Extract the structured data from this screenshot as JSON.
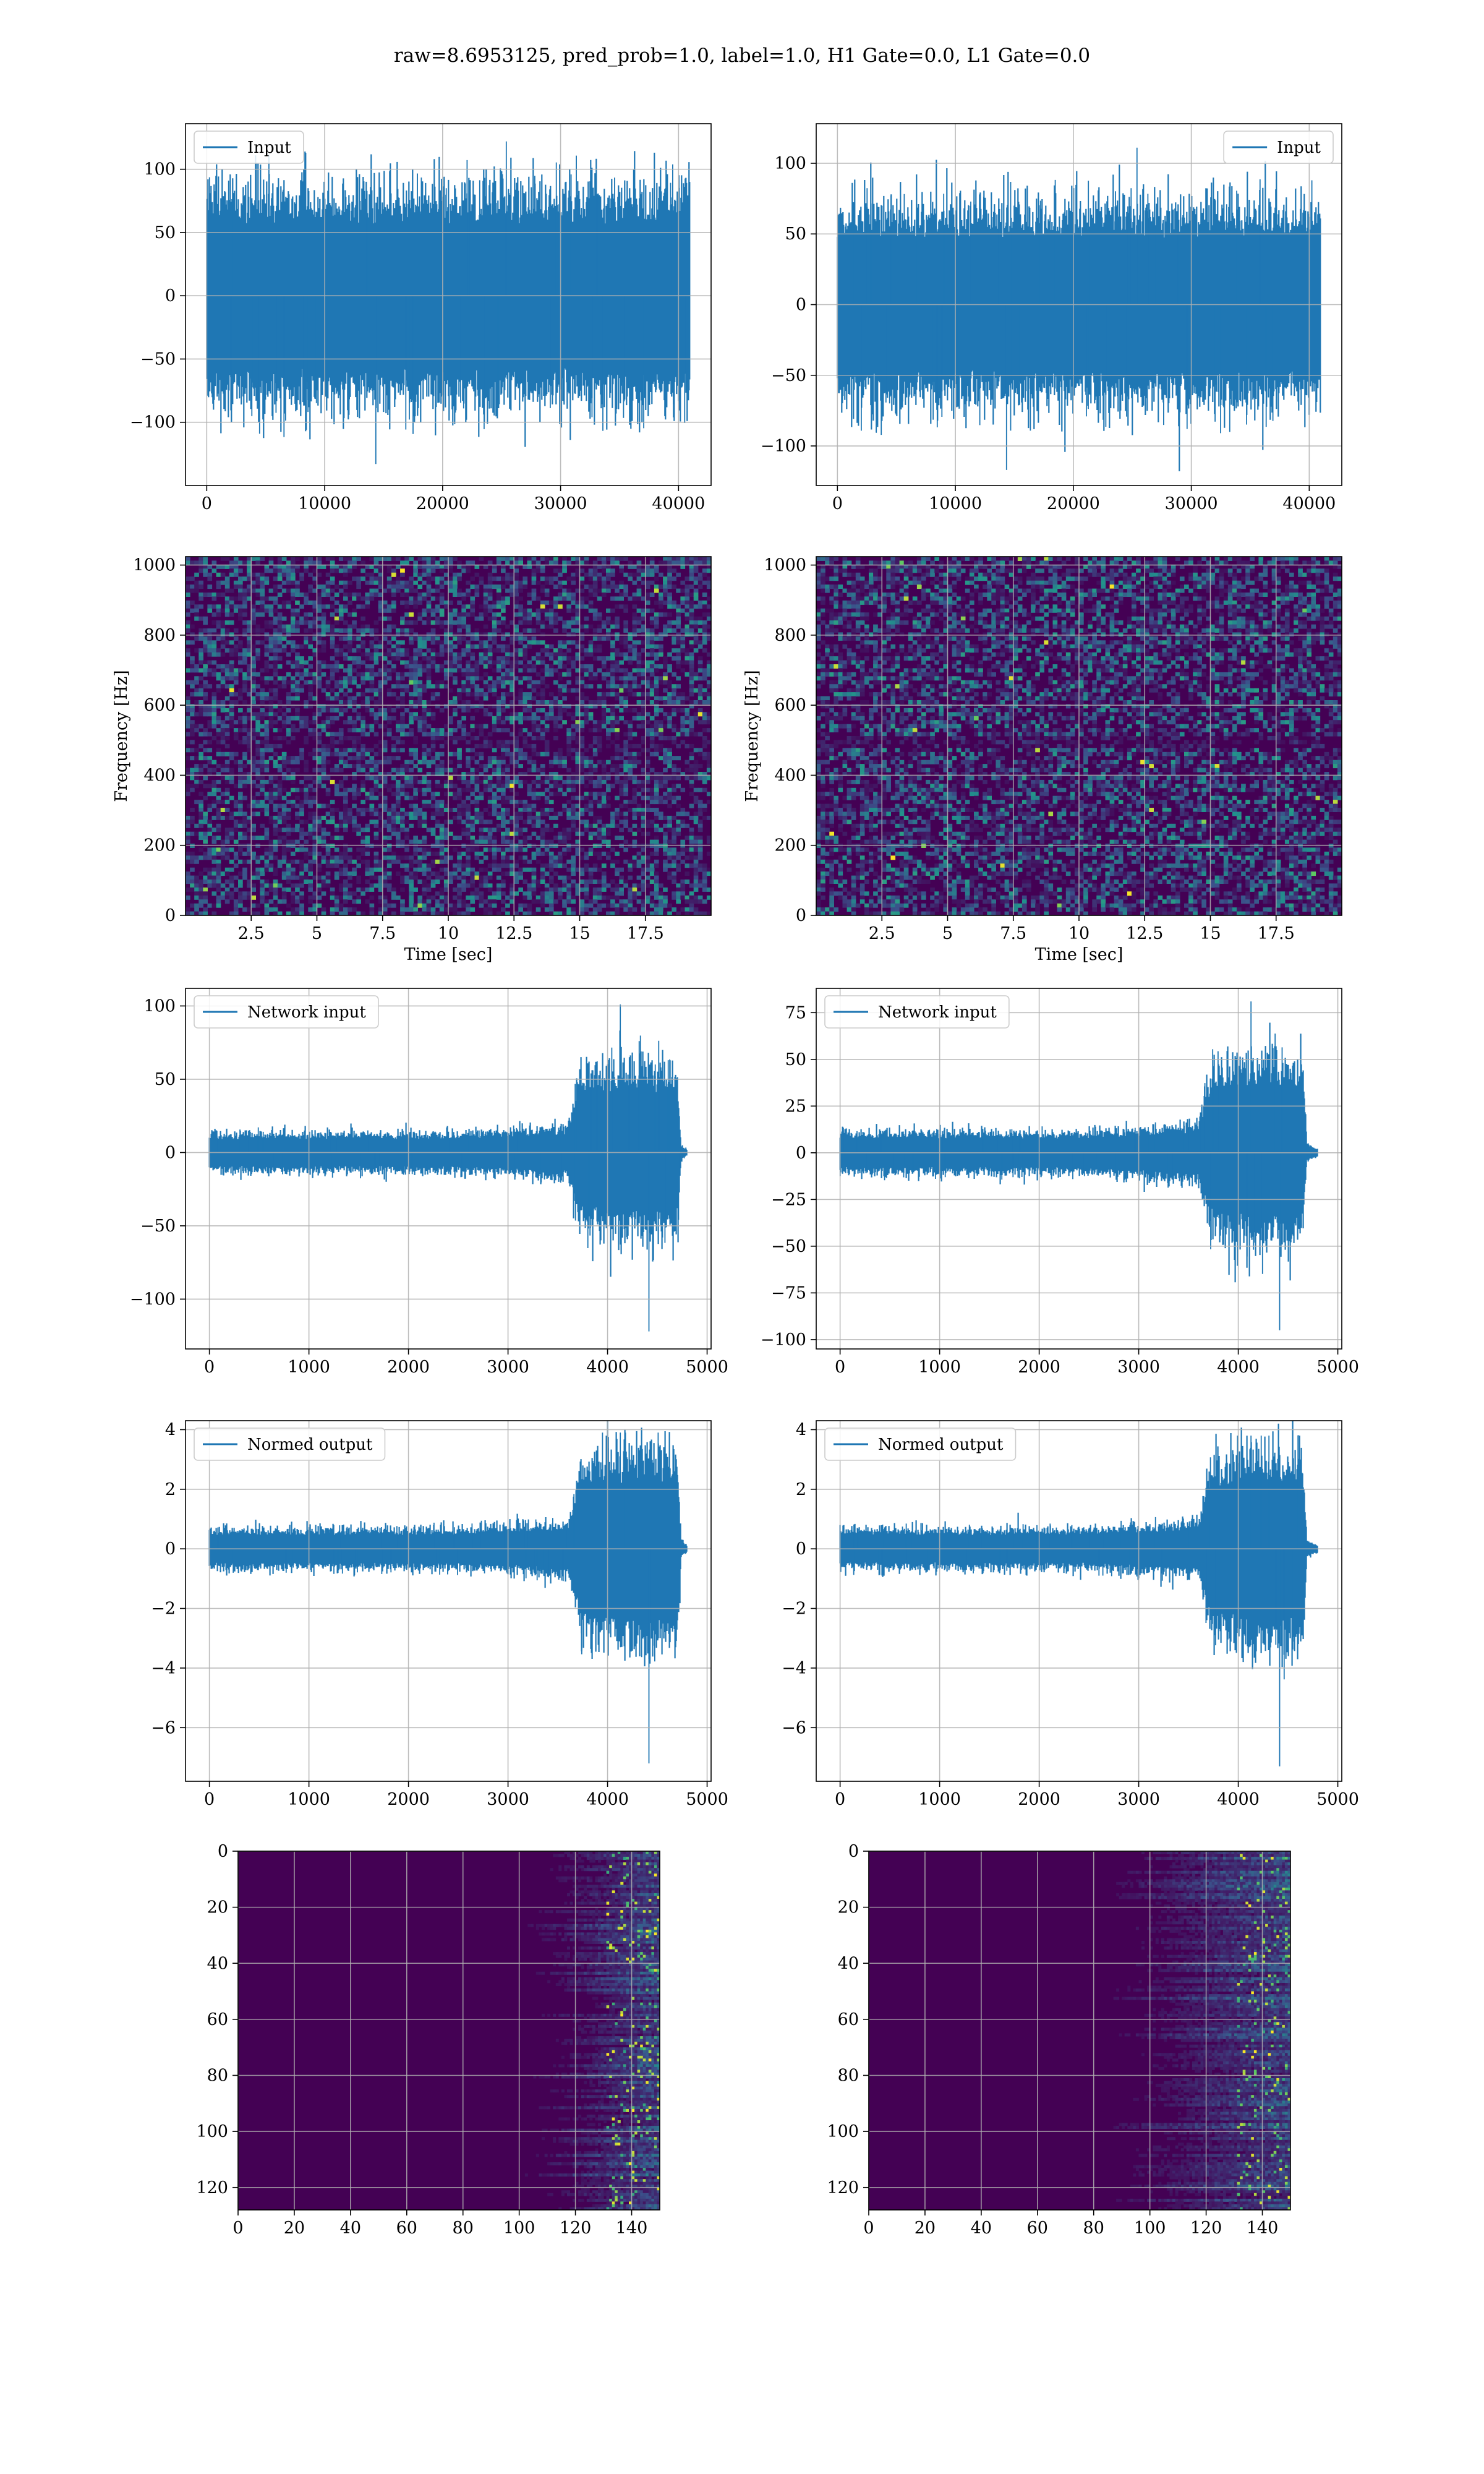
{
  "figure": {
    "suptitle": "raw=8.6953125, pred_prob=1.0, label=1.0, H1 Gate=0.0, L1 Gate=0.0"
  },
  "colors": {
    "series": "#1f77b4",
    "grid": "#b0b0b0",
    "viridis_dark": "#440154",
    "viridis_mid": "#21918c",
    "viridis_light": "#fde725"
  },
  "chart_data": [
    {
      "id": "h1-input",
      "type": "line",
      "legend": "Input",
      "legend_loc": "upper-left",
      "xlim": [
        -1800,
        42760
      ],
      "ylim": [
        -150,
        136
      ],
      "xticks": [
        0,
        10000,
        20000,
        30000,
        40000
      ],
      "yticks": [
        -100,
        -50,
        0,
        50,
        100
      ],
      "x_range": [
        0,
        40960
      ],
      "envelope": [
        {
          "x": 0,
          "lo": -75,
          "hi": 75
        },
        {
          "x": 20000,
          "lo": -75,
          "hi": 75
        },
        {
          "x": 40960,
          "lo": -75,
          "hi": 75
        }
      ],
      "peaks": [
        -133,
        122
      ],
      "grid": true
    },
    {
      "id": "l1-input",
      "type": "line",
      "legend": "Input",
      "legend_loc": "upper-right",
      "xlim": [
        -1800,
        42760
      ],
      "ylim": [
        -128,
        128
      ],
      "xticks": [
        0,
        10000,
        20000,
        30000,
        40000
      ],
      "yticks": [
        -100,
        -50,
        0,
        50,
        100
      ],
      "x_range": [
        0,
        40960
      ],
      "envelope": [
        {
          "x": 0,
          "lo": -62,
          "hi": 62
        },
        {
          "x": 20000,
          "lo": -62,
          "hi": 62
        },
        {
          "x": 40960,
          "lo": -62,
          "hi": 62
        }
      ],
      "peaks": [
        -117,
        111
      ],
      "grid": true
    },
    {
      "id": "h1-spectrogram",
      "type": "heatmap",
      "xlabel": "Time [sec]",
      "ylabel": "Frequency [Hz]",
      "xlim": [
        0,
        20
      ],
      "ylim": [
        0,
        1024
      ],
      "xticks": [
        2.5,
        5.0,
        7.5,
        10.0,
        12.5,
        15.0,
        17.5
      ],
      "yticks": [
        0,
        200,
        400,
        600,
        800,
        1000
      ],
      "colormap": "viridis",
      "grid": true
    },
    {
      "id": "l1-spectrogram",
      "type": "heatmap",
      "xlabel": "Time [sec]",
      "ylabel": "Frequency [Hz]",
      "xlim": [
        0,
        20
      ],
      "ylim": [
        0,
        1024
      ],
      "xticks": [
        2.5,
        5.0,
        7.5,
        10.0,
        12.5,
        15.0,
        17.5
      ],
      "yticks": [
        0,
        200,
        400,
        600,
        800,
        1000
      ],
      "colormap": "viridis",
      "grid": true
    },
    {
      "id": "h1-network-input",
      "type": "line",
      "legend": "Network input",
      "legend_loc": "upper-left",
      "xlim": [
        -240,
        5040
      ],
      "ylim": [
        -134,
        112
      ],
      "xticks": [
        0,
        1000,
        2000,
        3000,
        4000,
        5000
      ],
      "yticks": [
        -100,
        -50,
        0,
        50,
        100
      ],
      "x_range": [
        0,
        4800
      ],
      "envelope": [
        {
          "x": 0,
          "lo": -12,
          "hi": 12
        },
        {
          "x": 2500,
          "lo": -12,
          "hi": 12
        },
        {
          "x": 3600,
          "lo": -16,
          "hi": 16
        },
        {
          "x": 3740,
          "lo": -45,
          "hi": 48
        },
        {
          "x": 4300,
          "lo": -52,
          "hi": 55
        },
        {
          "x": 4700,
          "lo": -50,
          "hi": 52
        },
        {
          "x": 4740,
          "lo": -4,
          "hi": 4
        },
        {
          "x": 4800,
          "lo": -2,
          "hi": 2
        }
      ],
      "peaks": [
        -122,
        101
      ],
      "grid": true
    },
    {
      "id": "l1-network-input",
      "type": "line",
      "legend": "Network input",
      "legend_loc": "upper-left",
      "xlim": [
        -240,
        5040
      ],
      "ylim": [
        -105,
        88
      ],
      "xticks": [
        0,
        1000,
        2000,
        3000,
        4000,
        5000
      ],
      "yticks": [
        -100,
        -75,
        -50,
        -25,
        0,
        25,
        50,
        75
      ],
      "x_range": [
        0,
        4800
      ],
      "envelope": [
        {
          "x": 0,
          "lo": -10,
          "hi": 10
        },
        {
          "x": 2500,
          "lo": -10,
          "hi": 10
        },
        {
          "x": 3600,
          "lo": -14,
          "hi": 14
        },
        {
          "x": 3740,
          "lo": -40,
          "hi": 42
        },
        {
          "x": 4300,
          "lo": -45,
          "hi": 45
        },
        {
          "x": 4650,
          "lo": -42,
          "hi": 44
        },
        {
          "x": 4690,
          "lo": -4,
          "hi": 4
        },
        {
          "x": 4800,
          "lo": -2,
          "hi": 2
        }
      ],
      "peaks": [
        -95,
        81
      ],
      "grid": true
    },
    {
      "id": "h1-normed-output",
      "type": "line",
      "legend": "Normed output",
      "legend_loc": "upper-left",
      "xlim": [
        -240,
        5040
      ],
      "ylim": [
        -7.8,
        4.3
      ],
      "xticks": [
        0,
        1000,
        2000,
        3000,
        4000,
        5000
      ],
      "yticks": [
        -6,
        -4,
        -2,
        0,
        2,
        4
      ],
      "x_range": [
        0,
        4800
      ],
      "envelope": [
        {
          "x": 0,
          "lo": -0.6,
          "hi": 0.6
        },
        {
          "x": 2500,
          "lo": -0.6,
          "hi": 0.6
        },
        {
          "x": 3600,
          "lo": -0.8,
          "hi": 0.8
        },
        {
          "x": 3740,
          "lo": -2.6,
          "hi": 2.6
        },
        {
          "x": 4300,
          "lo": -3.0,
          "hi": 3.0
        },
        {
          "x": 4700,
          "lo": -2.9,
          "hi": 2.9
        },
        {
          "x": 4740,
          "lo": -0.25,
          "hi": 0.25
        },
        {
          "x": 4800,
          "lo": -0.1,
          "hi": 0.1
        }
      ],
      "peaks": [
        -7.2,
        3.9
      ],
      "grid": true
    },
    {
      "id": "l1-normed-output",
      "type": "line",
      "legend": "Normed output",
      "legend_loc": "upper-left",
      "xlim": [
        -240,
        5040
      ],
      "ylim": [
        -7.8,
        4.3
      ],
      "xticks": [
        0,
        1000,
        2000,
        3000,
        4000,
        5000
      ],
      "yticks": [
        -6,
        -4,
        -2,
        0,
        2,
        4
      ],
      "x_range": [
        0,
        4800
      ],
      "envelope": [
        {
          "x": 0,
          "lo": -0.6,
          "hi": 0.6
        },
        {
          "x": 2500,
          "lo": -0.6,
          "hi": 0.6
        },
        {
          "x": 3600,
          "lo": -0.8,
          "hi": 0.8
        },
        {
          "x": 3740,
          "lo": -2.6,
          "hi": 2.6
        },
        {
          "x": 4300,
          "lo": -3.0,
          "hi": 3.0
        },
        {
          "x": 4650,
          "lo": -2.9,
          "hi": 2.9
        },
        {
          "x": 4690,
          "lo": -0.25,
          "hi": 0.25
        },
        {
          "x": 4800,
          "lo": -0.1,
          "hi": 0.1
        }
      ],
      "peaks": [
        -7.3,
        3.8
      ],
      "grid": true
    },
    {
      "id": "h1-feature-map",
      "type": "heatmap",
      "xlim": [
        0,
        150
      ],
      "ylim": [
        128,
        0
      ],
      "xticks": [
        0,
        20,
        40,
        60,
        80,
        100,
        120,
        140
      ],
      "yticks": [
        0,
        20,
        40,
        60,
        80,
        100,
        120
      ],
      "colormap": "viridis",
      "activity_onset": 100,
      "grid": true
    },
    {
      "id": "l1-feature-map",
      "type": "heatmap",
      "xlim": [
        0,
        150
      ],
      "ylim": [
        128,
        0
      ],
      "xticks": [
        0,
        20,
        40,
        60,
        80,
        100,
        120,
        140
      ],
      "yticks": [
        0,
        20,
        40,
        60,
        80,
        100,
        120
      ],
      "colormap": "viridis",
      "activity_onset": 80,
      "grid": true
    }
  ]
}
